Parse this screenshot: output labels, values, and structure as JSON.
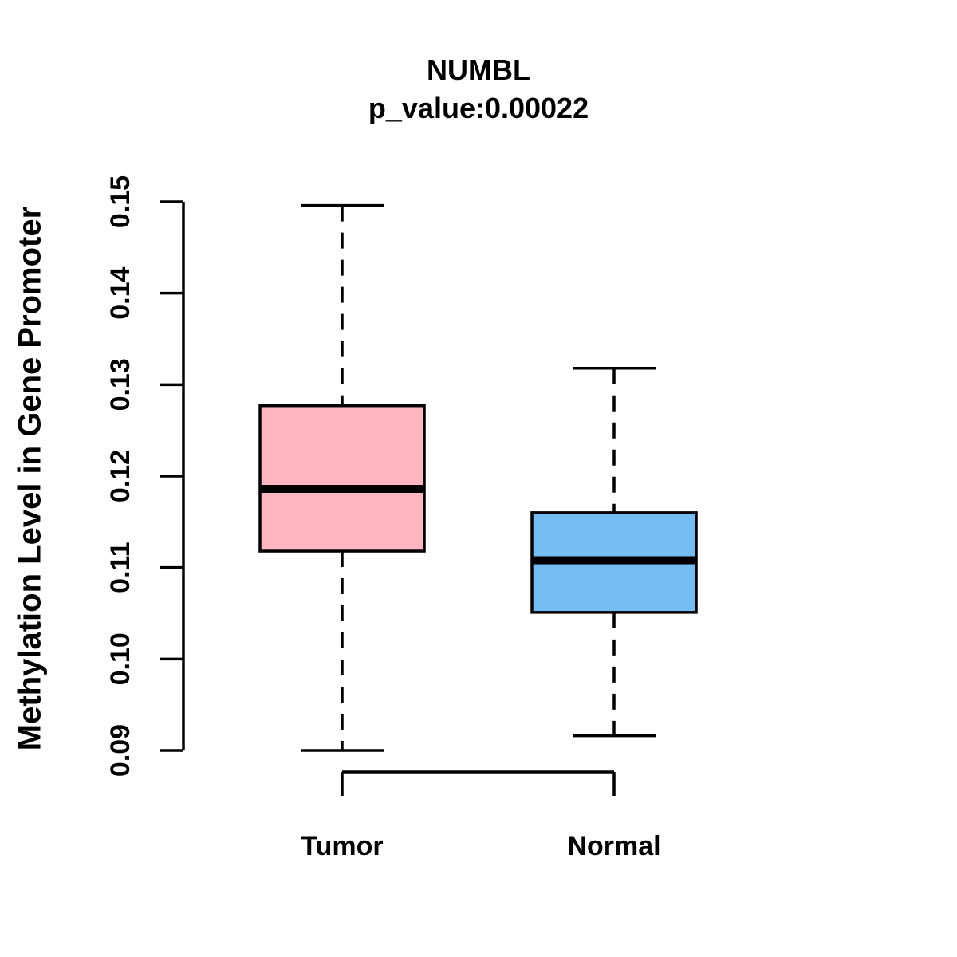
{
  "chart_data": {
    "type": "boxplot",
    "title": "NUMBL",
    "subtitle": "p_value:0.00022",
    "p_value": 0.00022,
    "ylabel": "Methylation Level in Gene Promoter",
    "xlabel": "",
    "ylim": [
      0.09,
      0.15
    ],
    "yticks": [
      0.09,
      0.1,
      0.11,
      0.12,
      0.13,
      0.14,
      0.15
    ],
    "ytick_labels": [
      "0.09",
      "0.10",
      "0.11",
      "0.12",
      "0.13",
      "0.14",
      "0.15"
    ],
    "categories": [
      "Tumor",
      "Normal"
    ],
    "series": [
      {
        "name": "Tumor",
        "color": "#FFB6C1",
        "lower_whisker": 0.09,
        "q1": 0.1118,
        "median": 0.1186,
        "q3": 0.1277,
        "upper_whisker": 0.1496
      },
      {
        "name": "Normal",
        "color": "#74BDF2",
        "lower_whisker": 0.0916,
        "q1": 0.1051,
        "median": 0.1108,
        "q3": 0.116,
        "upper_whisker": 0.1318
      }
    ],
    "grid": false,
    "legend_position": "none",
    "orientation": "vertical"
  },
  "colors": {
    "box_border": "#000000",
    "text": "#000000",
    "background": "#FFFFFF"
  }
}
